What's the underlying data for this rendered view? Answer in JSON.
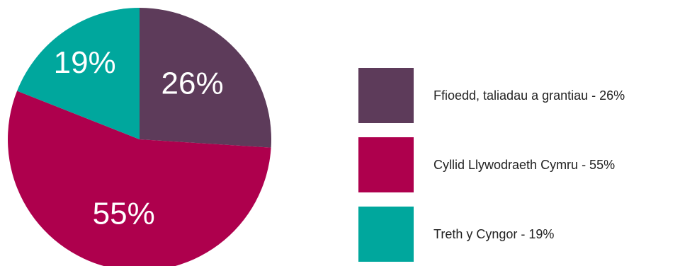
{
  "chart_data": {
    "type": "pie",
    "slices": [
      {
        "label": "Ffioedd, taliadau a grantiau - 26%",
        "value": 26,
        "data_label": "26%",
        "color": "#5d3b5a"
      },
      {
        "label": "Cyllid Llywodraeth Cymru - 55%",
        "value": 55,
        "data_label": "55%",
        "color": "#ae004d"
      },
      {
        "label": "Treth y Cyngor - 19%",
        "value": 19,
        "data_label": "19%",
        "color": "#00a79d"
      }
    ],
    "legend_position": "right"
  }
}
